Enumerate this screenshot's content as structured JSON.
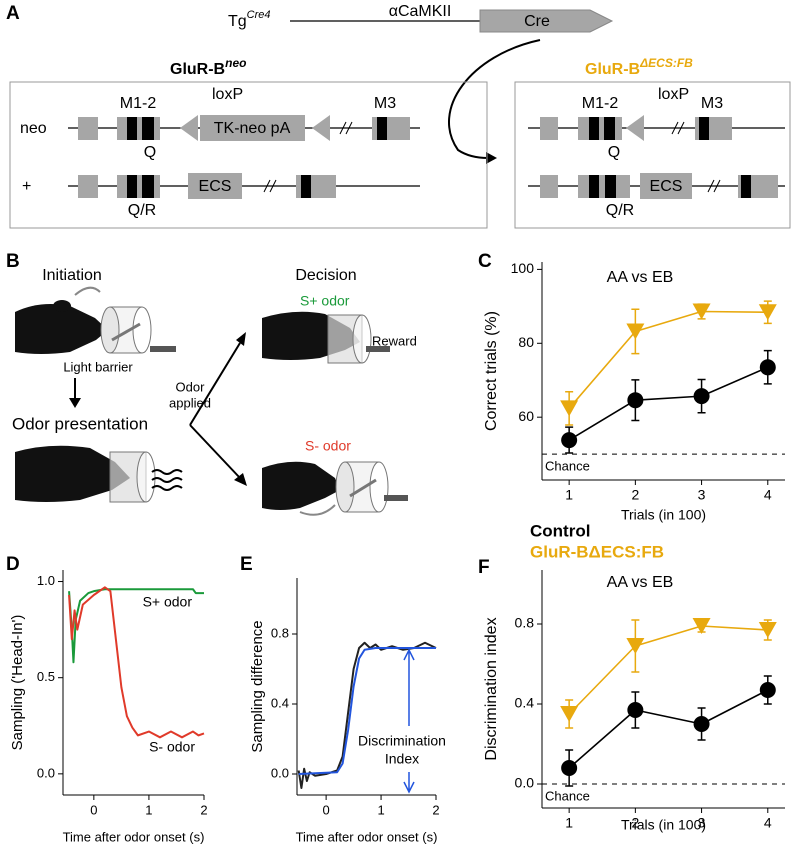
{
  "panel_a": {
    "label": "A",
    "tg": "Tg",
    "tg_sup": "Cre4",
    "promoter": "αCaMKII",
    "cre": "Cre",
    "left_title": "GluR-B",
    "left_title_sup": "neo",
    "right_title": "GluR-B",
    "right_title_sup": "ΔECS:FB",
    "rows": [
      "neo",
      "+"
    ],
    "left": {
      "m12": "M1-2",
      "loxp": "loxP",
      "tkneo": "TK-neo pA",
      "m3": "M3",
      "q": "Q",
      "ecs": "ECS",
      "qr": "Q/R"
    },
    "right": {
      "m12": "M1-2",
      "loxp": "loxP",
      "m3": "M3",
      "q": "Q",
      "ecs": "ECS",
      "qr": "Q/R"
    }
  },
  "panel_b": {
    "label": "B",
    "initiation": "Initiation",
    "decision": "Decision",
    "s_plus": "S+ odor",
    "reward": "Reward",
    "light_barrier": "Light barrier",
    "odor_presentation": "Odor presentation",
    "odor_applied": [
      "Odor",
      "applied"
    ],
    "s_minus": "S- odor"
  },
  "chart_data": [
    {
      "panel_label": "C",
      "type": "line",
      "title": "AA vs EB",
      "xlabel": "Trials (in 100)",
      "ylabel": "Correct trials (%)",
      "x": [
        1,
        2,
        3,
        4
      ],
      "xlim": [
        0.59,
        4.26
      ],
      "ylim": [
        43,
        102
      ],
      "xticks": [
        1,
        2,
        3,
        4
      ],
      "yticks": [
        60,
        80,
        100
      ],
      "hline": {
        "value": 50,
        "label": "Chance"
      },
      "series": [
        {
          "color": "#000000",
          "marker": "circle",
          "values": [
            53.8,
            64.6,
            65.7,
            73.5
          ],
          "errors": [
            3.5,
            5.5,
            4.5,
            4.5
          ]
        },
        {
          "color": "#e8a90e",
          "marker": "triangle-down",
          "values": [
            62.4,
            83.2,
            88.6,
            88.4
          ],
          "errors": [
            4.5,
            6,
            2,
            3
          ]
        }
      ]
    },
    {
      "panel_label": "D",
      "type": "line",
      "xlabel": "Time after odor onset (s)",
      "ylabel": "Sampling ('Head-In')",
      "xlim": [
        -0.56,
        2.0
      ],
      "ylim": [
        -0.11,
        1.06
      ],
      "xticks": [
        0,
        1,
        2
      ],
      "yticks": [
        {
          "value": 0,
          "label": "0.0"
        },
        0.5,
        {
          "value": 1,
          "label": "1.0"
        }
      ],
      "series": [
        {
          "name": "S+ odor",
          "color": "#1a9a3a",
          "x": [
            -0.45,
            -0.4,
            -0.37,
            -0.33,
            -0.25,
            -0.1,
            0,
            0.2,
            0.5,
            1,
            1.5,
            1.8,
            1.85,
            2
          ],
          "values": [
            0.95,
            0.75,
            0.58,
            0.8,
            0.9,
            0.94,
            0.95,
            0.96,
            0.96,
            0.96,
            0.96,
            0.96,
            0.94,
            0.94
          ]
        },
        {
          "name": "S- odor",
          "color": "#e03a2a",
          "x": [
            -0.45,
            -0.4,
            -0.35,
            -0.3,
            -0.2,
            0,
            0.2,
            0.3,
            0.4,
            0.5,
            0.6,
            0.7,
            0.8,
            1,
            1.2,
            1.4,
            1.6,
            1.8,
            1.9,
            2
          ],
          "values": [
            0.93,
            0.7,
            0.85,
            0.75,
            0.88,
            0.93,
            0.97,
            0.95,
            0.7,
            0.45,
            0.3,
            0.24,
            0.2,
            0.22,
            0.19,
            0.22,
            0.19,
            0.22,
            0.2,
            0.21
          ]
        }
      ]
    },
    {
      "panel_label": "E",
      "type": "line",
      "xlabel": "Time after odor onset (s)",
      "ylabel": "Sampling difference",
      "annotation": [
        "Discrimination",
        "Index"
      ],
      "xlim": [
        -0.53,
        2.0
      ],
      "ylim": [
        -0.12,
        1.12
      ],
      "xticks": [
        0,
        1,
        2
      ],
      "yticks": [
        {
          "value": 0,
          "label": "0.0"
        },
        0.4,
        0.8
      ],
      "series": [
        {
          "color": "#222222",
          "x": [
            -0.5,
            -0.45,
            -0.4,
            -0.35,
            -0.3,
            -0.2,
            0,
            0.2,
            0.3,
            0.4,
            0.5,
            0.6,
            0.7,
            0.8,
            0.9,
            1.0,
            1.2,
            1.4,
            1.6,
            1.8,
            2.0
          ],
          "values": [
            0.02,
            -0.08,
            0.03,
            -0.04,
            0.01,
            -0.01,
            0.0,
            0.02,
            0.1,
            0.35,
            0.6,
            0.72,
            0.75,
            0.72,
            0.74,
            0.71,
            0.73,
            0.71,
            0.72,
            0.75,
            0.72
          ]
        },
        {
          "color": "#2255dd",
          "x": [
            -0.5,
            0.2,
            0.3,
            0.4,
            0.5,
            0.6,
            0.7,
            0.9,
            2.0
          ],
          "values": [
            0,
            0.01,
            0.06,
            0.25,
            0.5,
            0.66,
            0.71,
            0.72,
            0.72
          ]
        }
      ]
    },
    {
      "panel_label": "F",
      "type": "line",
      "title": "AA vs EB",
      "xlabel": "Trials (in 100)",
      "ylabel": "Discrimination index",
      "x": [
        1,
        2,
        3,
        4
      ],
      "xlim": [
        0.59,
        4.26
      ],
      "ylim": [
        -0.12,
        1.07
      ],
      "xticks": [
        1,
        2,
        3,
        4
      ],
      "yticks": [
        {
          "value": 0,
          "label": "0.0"
        },
        0.4,
        0.8
      ],
      "hline": {
        "value": 0,
        "label": "Chance"
      },
      "legend": "top-left",
      "series": [
        {
          "name": "Control",
          "color": "#000000",
          "marker": "circle",
          "values": [
            0.08,
            0.37,
            0.3,
            0.47
          ],
          "errors": [
            0.09,
            0.09,
            0.08,
            0.07
          ]
        },
        {
          "name": "GluR-BΔECS:FB",
          "color": "#e8a90e",
          "marker": "triangle-down",
          "values": [
            0.35,
            0.69,
            0.79,
            0.77
          ],
          "errors": [
            0.07,
            0.13,
            0.03,
            0.05
          ]
        }
      ]
    }
  ]
}
